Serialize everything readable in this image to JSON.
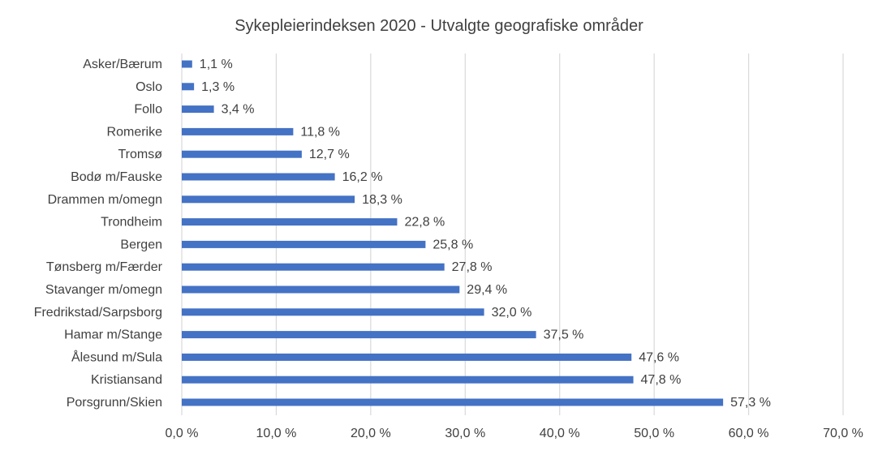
{
  "chart_data": {
    "type": "bar",
    "orientation": "horizontal",
    "title": "Sykepleierindeksen 2020 - Utvalgte geografiske områder",
    "xlabel": "",
    "ylabel": "",
    "categories": [
      "Asker/Bærum",
      "Oslo",
      "Follo",
      "Romerike",
      "Tromsø",
      "Bodø m/Fauske",
      "Drammen m/omegn",
      "Trondheim",
      "Bergen",
      "Tønsberg m/Færder",
      "Stavanger m/omegn",
      "Fredrikstad/Sarpsborg",
      "Hamar m/Stange",
      "Ålesund m/Sula",
      "Kristiansand",
      "Porsgrunn/Skien"
    ],
    "values": [
      1.1,
      1.3,
      3.4,
      11.8,
      12.7,
      16.2,
      18.3,
      22.8,
      25.8,
      27.8,
      29.4,
      32.0,
      37.5,
      47.6,
      47.8,
      57.3
    ],
    "value_labels": [
      "1,1 %",
      "1,3 %",
      "3,4 %",
      "11,8 %",
      "12,7 %",
      "16,2 %",
      "18,3 %",
      "22,8 %",
      "25,8 %",
      "27,8 %",
      "29,4 %",
      "32,0 %",
      "37,5 %",
      "47,6 %",
      "47,8 %",
      "57,3 %"
    ],
    "xlim": [
      0,
      70
    ],
    "x_ticks": [
      0,
      10,
      20,
      30,
      40,
      50,
      60,
      70
    ],
    "x_tick_labels": [
      "0,0 %",
      "10,0 %",
      "20,0 %",
      "30,0 %",
      "40,0 %",
      "50,0 %",
      "60,0 %",
      "70,0 %"
    ],
    "grid": true,
    "legend": "none",
    "bar_color": "#4472C4",
    "grid_color": "#D9D9D9",
    "text_color": "#404040"
  }
}
